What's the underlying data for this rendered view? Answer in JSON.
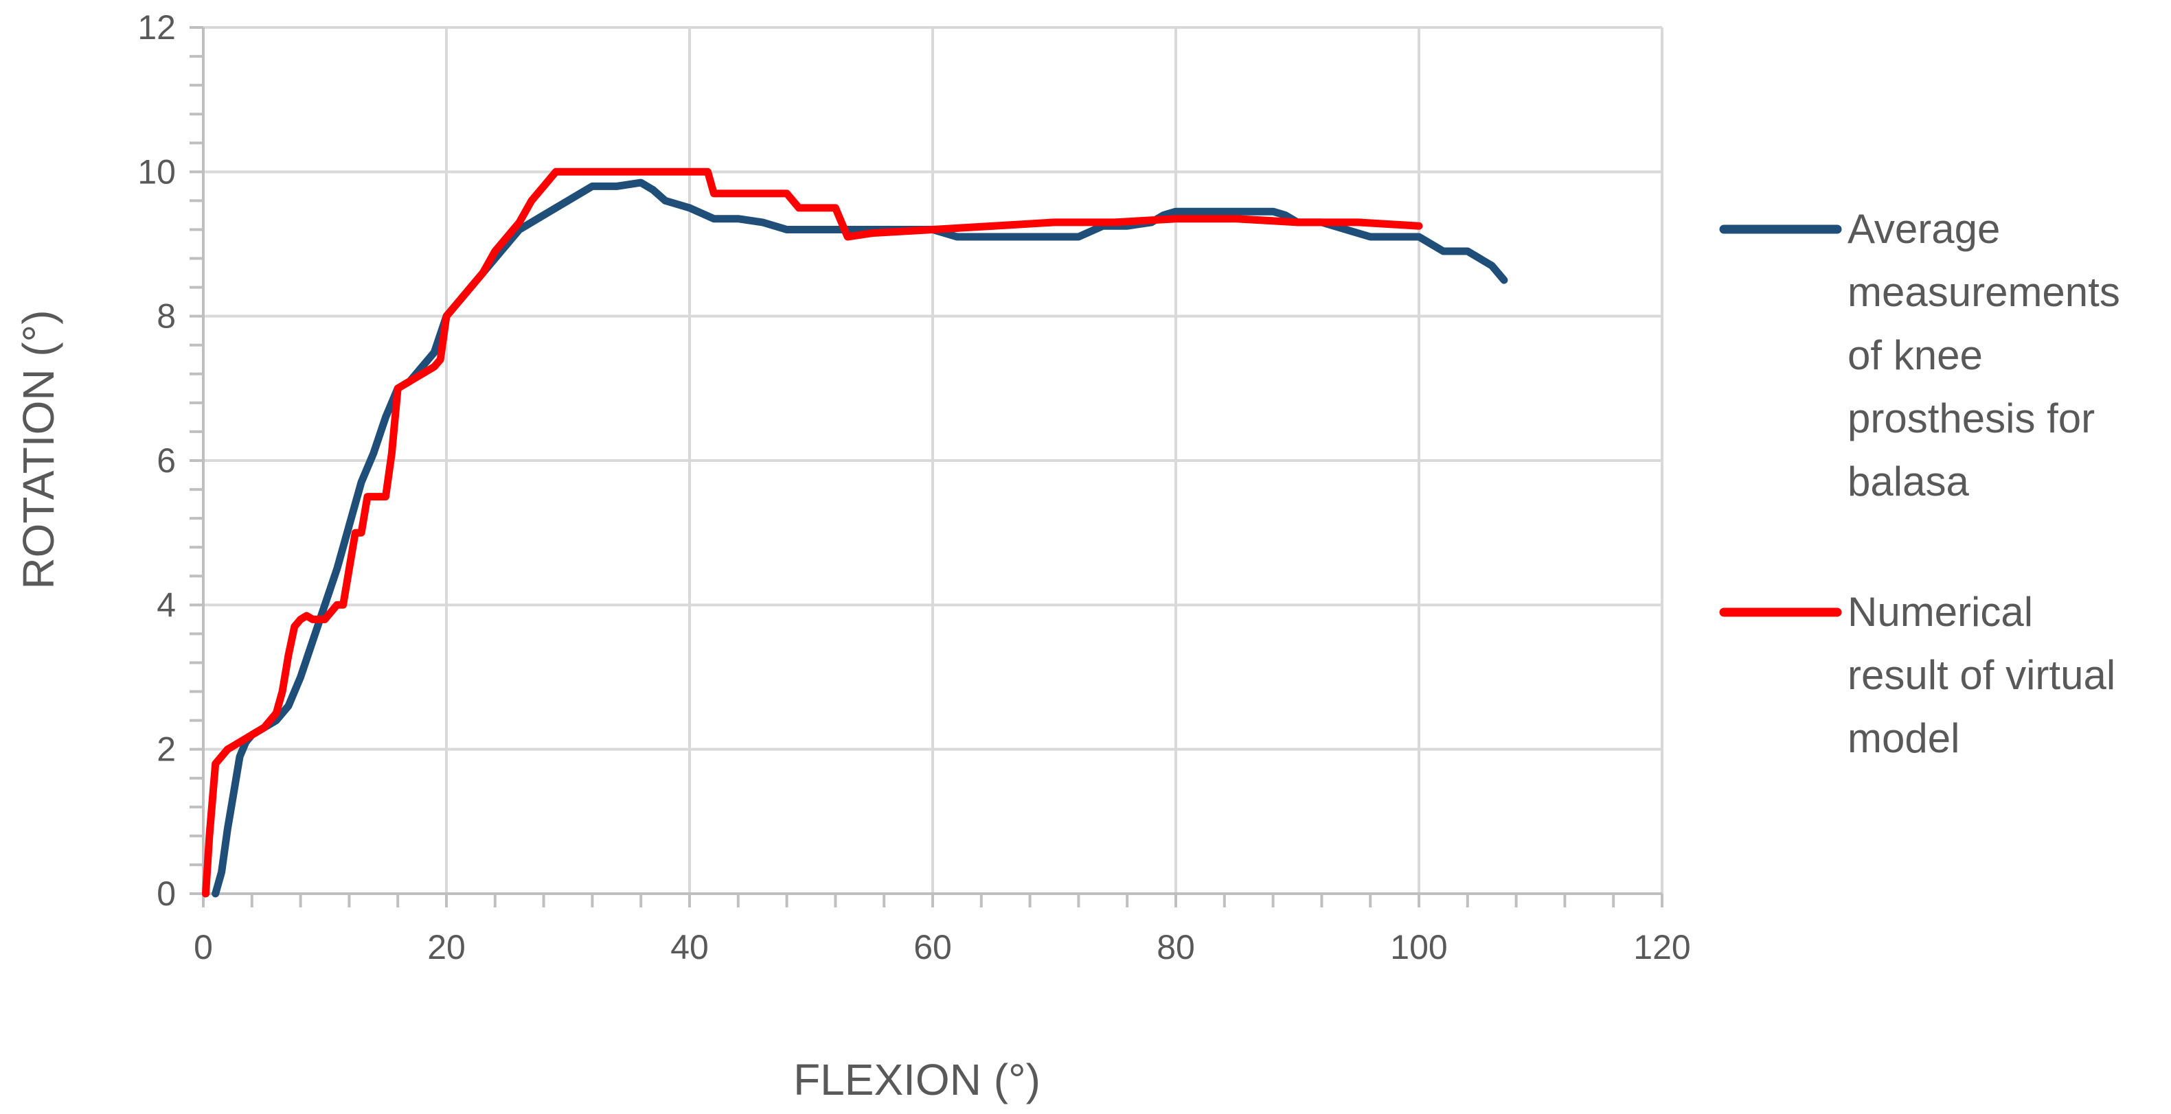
{
  "chart_data": {
    "type": "line",
    "title": "",
    "xlabel": "FLEXION (°)",
    "ylabel": "ROTATION (°)",
    "xlim": [
      0,
      120
    ],
    "ylim": [
      0,
      12
    ],
    "x_ticks": [
      "0",
      "20",
      "40",
      "60",
      "80",
      "100",
      "120"
    ],
    "y_ticks": [
      "0",
      "2",
      "4",
      "6",
      "8",
      "10",
      "12"
    ],
    "grid": true,
    "legend_position": "right",
    "series": [
      {
        "name": "Average measurements of knee prosthesis for balasa",
        "legend_lines": [
          "Average",
          "measurements",
          "of knee",
          "prosthesis for",
          "balasa"
        ],
        "color": "#1F4E79",
        "x": [
          1,
          1.5,
          2,
          2.5,
          3,
          3.5,
          4,
          5,
          6,
          7,
          8,
          9,
          10,
          11,
          12,
          13,
          14,
          15,
          16,
          17,
          18,
          19,
          20,
          22,
          24,
          26,
          28,
          30,
          32,
          34,
          36,
          37,
          38,
          40,
          42,
          44,
          46,
          48,
          50,
          52,
          54,
          56,
          58,
          60,
          62,
          64,
          66,
          68,
          70,
          72,
          74,
          76,
          78,
          79,
          80,
          82,
          84,
          86,
          88,
          89,
          90,
          92,
          94,
          96,
          98,
          100,
          102,
          104,
          106,
          107
        ],
        "y": [
          0,
          0.3,
          0.9,
          1.4,
          1.9,
          2.1,
          2.2,
          2.3,
          2.4,
          2.6,
          3.0,
          3.5,
          4.0,
          4.5,
          5.1,
          5.7,
          6.1,
          6.6,
          7.0,
          7.1,
          7.3,
          7.5,
          8.0,
          8.4,
          8.8,
          9.2,
          9.4,
          9.6,
          9.8,
          9.8,
          9.85,
          9.75,
          9.6,
          9.5,
          9.35,
          9.35,
          9.3,
          9.2,
          9.2,
          9.2,
          9.2,
          9.2,
          9.2,
          9.2,
          9.1,
          9.1,
          9.1,
          9.1,
          9.1,
          9.1,
          9.25,
          9.25,
          9.3,
          9.4,
          9.45,
          9.45,
          9.45,
          9.45,
          9.45,
          9.4,
          9.3,
          9.3,
          9.2,
          9.1,
          9.1,
          9.1,
          8.9,
          8.9,
          8.7,
          8.5
        ]
      },
      {
        "name": "Numerical result of virtual model",
        "legend_lines": [
          "Numerical",
          "result of virtual",
          "model"
        ],
        "color": "#FF0000",
        "x": [
          0.2,
          0.5,
          1,
          1.5,
          2,
          3,
          4,
          5,
          6,
          6.5,
          7,
          7.5,
          8,
          8.5,
          9,
          10,
          11,
          11.5,
          12,
          12.5,
          13,
          13.5,
          14,
          14.5,
          15,
          15.5,
          16,
          17,
          18,
          19,
          19.5,
          20,
          21,
          22,
          23,
          24,
          25,
          26,
          27,
          28,
          29,
          30,
          32,
          34,
          36,
          38,
          40,
          41.5,
          42,
          44,
          46,
          48,
          49,
          50,
          52,
          53,
          55,
          60,
          65,
          70,
          75,
          80,
          85,
          90,
          95,
          100
        ],
        "y": [
          0,
          0.8,
          1.8,
          1.9,
          2.0,
          2.1,
          2.2,
          2.3,
          2.5,
          2.8,
          3.3,
          3.7,
          3.8,
          3.85,
          3.8,
          3.8,
          4.0,
          4.0,
          4.5,
          5.0,
          5.0,
          5.5,
          5.5,
          5.5,
          5.5,
          6.1,
          7.0,
          7.1,
          7.2,
          7.3,
          7.4,
          8.0,
          8.2,
          8.4,
          8.6,
          8.9,
          9.1,
          9.3,
          9.6,
          9.8,
          10.0,
          10.0,
          10.0,
          10.0,
          10.0,
          10.0,
          10.0,
          10.0,
          9.7,
          9.7,
          9.7,
          9.7,
          9.5,
          9.5,
          9.5,
          9.1,
          9.15,
          9.2,
          9.25,
          9.3,
          9.3,
          9.35,
          9.35,
          9.3,
          9.3,
          9.25
        ]
      }
    ]
  }
}
